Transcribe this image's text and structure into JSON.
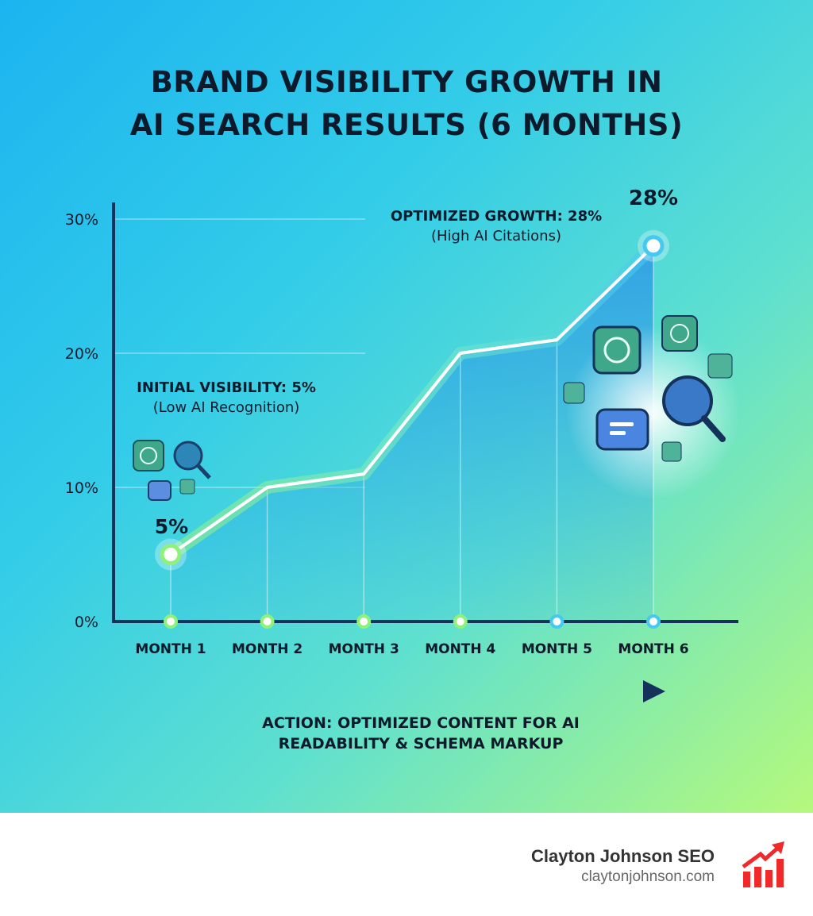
{
  "chart_data": {
    "type": "line",
    "title": "BRAND VISIBILITY GROWTH IN AI SEARCH RESULTS (6 MONTHS)",
    "title_lines": [
      "BRAND VISIBILITY GROWTH IN",
      "AI SEARCH RESULTS (6 MONTHS)"
    ],
    "categories": [
      "MONTH 1",
      "MONTH 2",
      "MONTH 3",
      "MONTH 4",
      "MONTH 5",
      "MONTH 6"
    ],
    "series": [
      {
        "name": "Brand visibility",
        "values": [
          5,
          10,
          11,
          20,
          21,
          28
        ]
      }
    ],
    "ylim": [
      0,
      30
    ],
    "yticks": [
      0,
      10,
      20,
      30
    ],
    "ytick_labels": [
      "0%",
      "10%",
      "20%",
      "30%"
    ],
    "grid": true,
    "data_labels": {
      "start": "5%",
      "end": "28%"
    },
    "annotations": {
      "start_title": "INITIAL VISIBILITY: 5%",
      "start_sub": "(Low AI Recognition)",
      "end_title": "OPTIMIZED GROWTH: 28%",
      "end_sub": "(High AI Citations)",
      "action_lines": [
        "ACTION: OPTIMIZED CONTENT FOR AI",
        "READABILITY & SCHEMA MARKUP"
      ]
    },
    "colors": {
      "line_start": "#8ef27a",
      "line_end": "#45c9f0",
      "fill": "#2a9fe8",
      "axis": "#14325a"
    }
  },
  "footer": {
    "brand": "Clayton Johnson SEO",
    "url": "claytonjohnson.com",
    "logo_color": "#f02a2a"
  }
}
